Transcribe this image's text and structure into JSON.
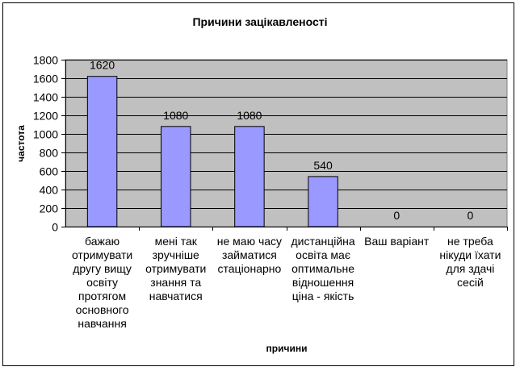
{
  "chart_data": {
    "type": "bar",
    "title": "Причини зацікавленості",
    "xlabel": "причини",
    "ylabel": "частота",
    "ylim": [
      0,
      1800
    ],
    "ytick_step": 200,
    "yticks": [
      "0",
      "200",
      "400",
      "600",
      "800",
      "1000",
      "1200",
      "1400",
      "1600",
      "1800"
    ],
    "grid": true,
    "legend": "none",
    "categories": [
      [
        "бажаю",
        "отримувати",
        "другу вищу",
        "освіту",
        "протягом",
        "основного",
        "навчання"
      ],
      [
        "мені так",
        "зручніше",
        "отримувати",
        "знання та",
        "навчатися"
      ],
      [
        "не маю часу",
        "займатися",
        "стаціонарно"
      ],
      [
        "дистанційна",
        "освіта має",
        "оптимальне",
        "відношення",
        "ціна - якість"
      ],
      [
        "Ваш варіант"
      ],
      [
        "не треба",
        "нікуди їхати",
        "для здачі",
        "сесій"
      ]
    ],
    "values": [
      1620,
      1080,
      1080,
      540,
      0,
      0
    ],
    "data_labels": [
      "1620",
      "1080",
      "1080",
      "540",
      "0",
      "0"
    ],
    "colors": {
      "plot_bg": "#c0c0c0",
      "bar_fill": "#9999ff",
      "bar_stroke": "#000000",
      "grid": "#000000"
    }
  }
}
